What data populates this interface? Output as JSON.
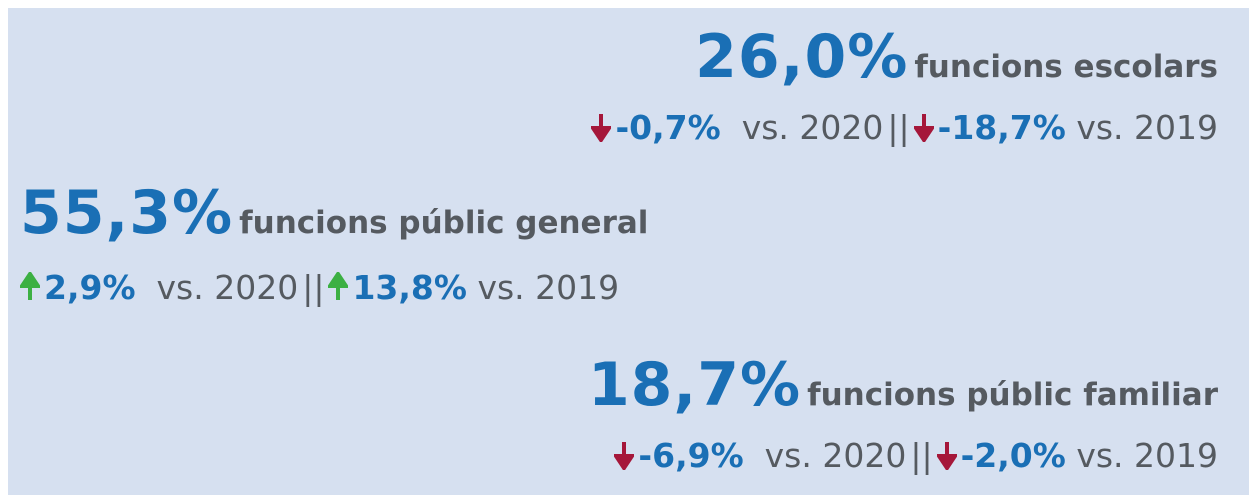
{
  "blocks": [
    {
      "value": "26,0%",
      "label": "funcions escolars",
      "separator": "||",
      "comparisons": [
        {
          "change": "-0,7%",
          "period": "vs. 2020"
        },
        {
          "change": "-18,7%",
          "period": "vs. 2019"
        }
      ]
    },
    {
      "value": "55,3%",
      "label": "funcions públic general",
      "separator": "||",
      "comparisons": [
        {
          "change": "2,9%",
          "period": "vs. 2020"
        },
        {
          "change": "13,8%",
          "period": "vs. 2019"
        }
      ]
    },
    {
      "value": "18,7%",
      "label": "funcions públic familiar",
      "separator": "||",
      "comparisons": [
        {
          "change": "-6,9%",
          "period": "vs. 2020"
        },
        {
          "change": "-2,0%",
          "period": "vs. 2019"
        }
      ]
    }
  ]
}
